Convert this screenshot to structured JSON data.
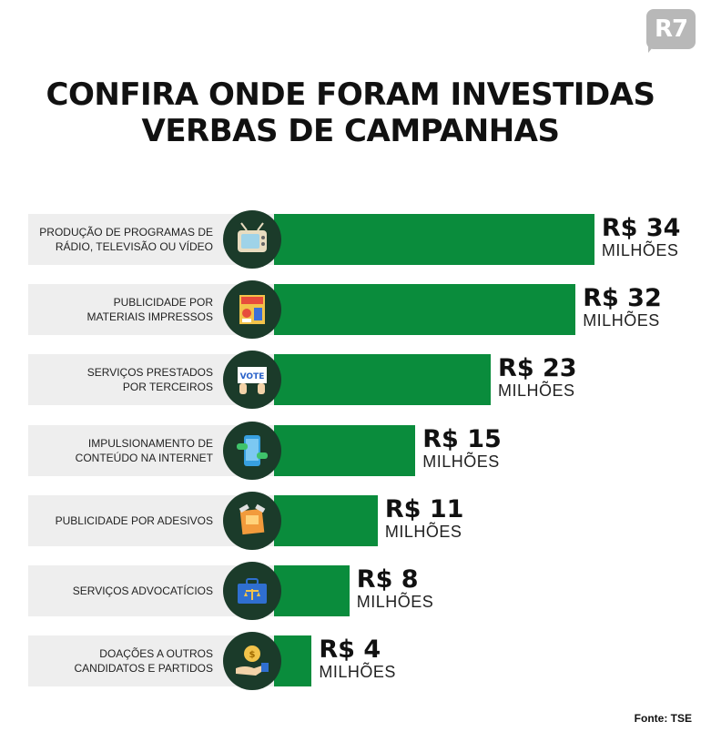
{
  "logo": {
    "text": "R7",
    "bg": "#b8b8b8"
  },
  "title": {
    "line1": "CONFIRA ONDE FORAM INVESTIDAS",
    "line2": "VERBAS DE CAMPANHAS"
  },
  "source": "Fonte: TSE",
  "colors": {
    "bar": "#0a8c3c",
    "icon_circle": "#1b3b2a",
    "label_bg": "#eeeeee"
  },
  "chart_data": {
    "type": "bar",
    "orientation": "horizontal",
    "unit": "MILHÕES",
    "categories": [
      {
        "lines": [
          "PRODUÇÃO DE PROGRAMAS DE",
          "RÁDIO, TELEVISÃO OU VÍDEO"
        ],
        "icon": "tv-icon",
        "value": 34,
        "label": "R$ 34"
      },
      {
        "lines": [
          "PUBLICIDADE POR",
          "MATERIAIS IMPRESSOS"
        ],
        "icon": "printed-poster-icon",
        "value": 32,
        "label": "R$ 32"
      },
      {
        "lines": [
          "SERVIÇOS PRESTADOS",
          "POR TERCEIROS"
        ],
        "icon": "vote-sign-icon",
        "value": 23,
        "label": "R$ 23"
      },
      {
        "lines": [
          "IMPULSIONAMENTO DE",
          "CONTEÚDO NA INTERNET"
        ],
        "icon": "smartphone-icon",
        "value": 15,
        "label": "R$ 15"
      },
      {
        "lines": [
          "PUBLICIDADE POR ADESIVOS"
        ],
        "icon": "sticker-icon",
        "value": 11,
        "label": "R$ 11"
      },
      {
        "lines": [
          "SERVIÇOS ADVOCATÍCIOS"
        ],
        "icon": "briefcase-scales-icon",
        "value": 8,
        "label": "R$ 8"
      },
      {
        "lines": [
          "DOAÇÕES A OUTROS",
          "CANDIDATOS E PARTIDOS"
        ],
        "icon": "hand-coin-icon",
        "value": 4,
        "label": "R$ 4"
      }
    ]
  }
}
